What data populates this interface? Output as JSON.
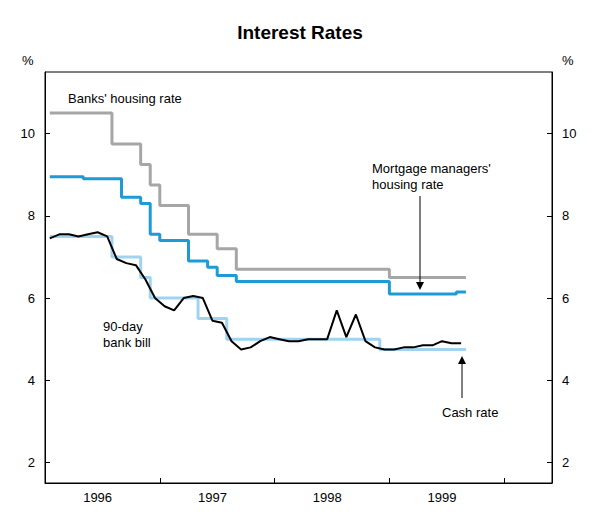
{
  "chart_data": {
    "type": "line",
    "title": "Interest Rates",
    "y_label": "%",
    "y2_label": "%",
    "categories": [
      null,
      null,
      null,
      null,
      null,
      "1996",
      null,
      null,
      null,
      null,
      null,
      null,
      null,
      null,
      null,
      null,
      null,
      "1997",
      null,
      null,
      null,
      null,
      null,
      null,
      null,
      null,
      null,
      null,
      null,
      "1998",
      null,
      null,
      null,
      null,
      null,
      null,
      null,
      null,
      null,
      null,
      null,
      "1999",
      null,
      null,
      null,
      null,
      null,
      null,
      null,
      null,
      null,
      null,
      null
    ],
    "series": [
      {
        "name": "Banks' housing rate",
        "color": "#a6a6a6",
        "line_style": "step",
        "values": [
          10.5,
          10.5,
          10.5,
          10.5,
          10.5,
          10.5,
          10.5,
          9.75,
          9.75,
          9.75,
          9.25,
          8.75,
          8.25,
          8.25,
          8.25,
          7.55,
          7.55,
          7.55,
          7.2,
          7.2,
          6.7,
          6.7,
          6.7,
          6.7,
          6.7,
          6.7,
          6.7,
          6.7,
          6.7,
          6.7,
          6.7,
          6.7,
          6.7,
          6.7,
          6.7,
          6.7,
          6.5,
          6.5,
          6.5,
          6.5,
          6.5,
          6.5,
          6.5,
          6.5,
          null,
          null,
          null,
          null,
          null,
          null,
          null,
          null,
          null
        ]
      },
      {
        "name": "Mortgage managers' housing rate",
        "color": "#1e9bd7",
        "line_style": "step",
        "values": [
          8.95,
          8.95,
          8.95,
          8.95,
          8.9,
          8.9,
          8.9,
          8.9,
          8.45,
          8.45,
          8.3,
          7.55,
          7.4,
          7.4,
          7.4,
          6.9,
          6.9,
          6.75,
          6.55,
          6.55,
          6.4,
          6.4,
          6.4,
          6.4,
          6.4,
          6.4,
          6.4,
          6.4,
          6.4,
          6.4,
          6.4,
          6.4,
          6.4,
          6.4,
          6.4,
          6.4,
          6.1,
          6.1,
          6.1,
          6.1,
          6.1,
          6.1,
          6.1,
          6.15,
          null,
          null,
          null,
          null,
          null,
          null,
          null,
          null,
          null
        ]
      },
      {
        "name": "Cash rate",
        "color": "#9fd3f0",
        "line_style": "step",
        "values": [
          7.5,
          7.5,
          7.5,
          7.5,
          7.5,
          7.5,
          7.5,
          7.0,
          7.0,
          7.0,
          6.5,
          6.0,
          6.0,
          6.0,
          6.0,
          6.0,
          5.5,
          5.5,
          5.5,
          5.0,
          5.0,
          5.0,
          5.0,
          5.0,
          5.0,
          5.0,
          5.0,
          5.0,
          5.0,
          5.0,
          5.0,
          5.0,
          5.0,
          5.0,
          5.0,
          4.75,
          4.75,
          4.75,
          4.75,
          4.75,
          4.75,
          4.75,
          4.75,
          4.75,
          null,
          null,
          null,
          null,
          null,
          null,
          null,
          null,
          null
        ]
      },
      {
        "name": "90-day bank bill",
        "color": "#000000",
        "line_style": "solid",
        "values": [
          7.45,
          7.55,
          7.55,
          7.5,
          7.55,
          7.6,
          7.5,
          6.95,
          6.85,
          6.8,
          6.45,
          6.0,
          5.8,
          5.7,
          6.0,
          6.05,
          6.0,
          5.45,
          5.4,
          4.95,
          4.75,
          4.8,
          4.95,
          5.05,
          5.0,
          4.95,
          4.95,
          5.0,
          5.0,
          5.0,
          5.7,
          5.05,
          5.6,
          4.95,
          4.8,
          4.75,
          4.75,
          4.8,
          4.8,
          4.85,
          4.85,
          4.95,
          4.9,
          4.9,
          null,
          null,
          null,
          null,
          null,
          null,
          null,
          null,
          null
        ]
      }
    ],
    "ylim": [
      1.5,
      11.5
    ],
    "yticks": [
      2,
      4,
      6,
      8,
      10
    ],
    "y2lim": [
      1.5,
      11.5
    ],
    "y2ticks": [
      2,
      4,
      6,
      8,
      10
    ],
    "grid": false
  }
}
